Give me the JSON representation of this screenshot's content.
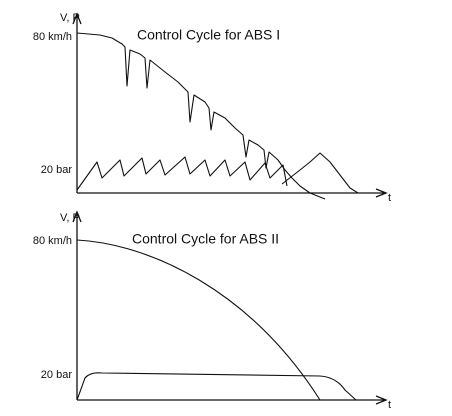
{
  "diagrams": [
    {
      "title": "Control Cycle for ABS I",
      "y_axis_label": "V, P",
      "x_axis_label": "t",
      "y_labels": [
        "80 km/h",
        "20 bar"
      ]
    },
    {
      "title": "Control Cycle for ABS II",
      "y_axis_label": "V, P",
      "x_axis_label": "t",
      "y_labels": [
        "80 km/h",
        "20 bar"
      ]
    }
  ]
}
